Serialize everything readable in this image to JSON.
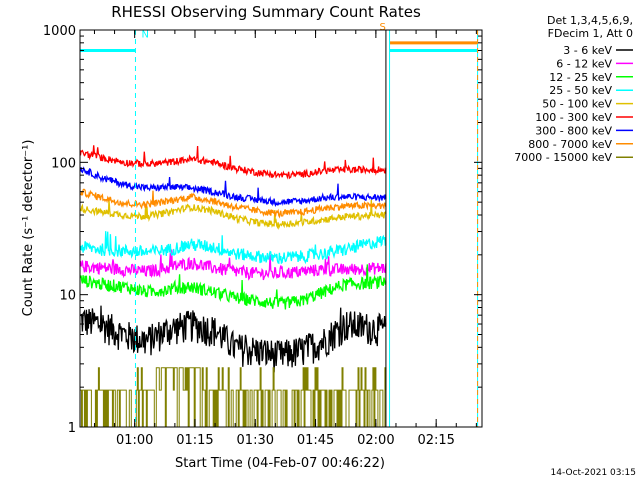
{
  "chart_data": {
    "type": "line",
    "title": "RHESSI Observing Summary Count Rates",
    "xlabel": "Start Time (04-Feb-07 00:46:22)",
    "ylabel": "Count Rate (s⁻¹ detector⁻¹)",
    "y_scale": "log",
    "ylim": [
      1,
      1000
    ],
    "xlim_minutes": [
      46.4,
      146.4
    ],
    "x_ticks": [
      {
        "minute": 60,
        "label": "01:00"
      },
      {
        "minute": 75,
        "label": "01:15"
      },
      {
        "minute": 90,
        "label": "01:30"
      },
      {
        "minute": 105,
        "label": "01:45"
      },
      {
        "minute": 120,
        "label": "02:00"
      },
      {
        "minute": 135,
        "label": "02:15"
      }
    ],
    "y_ticks": [
      {
        "value": 1,
        "label": "1"
      },
      {
        "value": 10,
        "label": "10"
      },
      {
        "value": 100,
        "label": "100"
      },
      {
        "value": 1000,
        "label": "1000"
      }
    ],
    "legend_header": [
      "Det 1,3,4,5,6,9,",
      "FDecim 1, Att 0"
    ],
    "legend_position": "right",
    "series": [
      {
        "name": "3 - 6 keV",
        "color": "#000000",
        "values": [
          6.5,
          6.0,
          5.0,
          4.5,
          5.5,
          6.0,
          5.5,
          4.0,
          3.8,
          3.5,
          3.8,
          4.5,
          6.0,
          5.5
        ]
      },
      {
        "name": "6 - 12 keV",
        "color": "#ff00ff",
        "values": [
          16.5,
          16.0,
          15.5,
          15.0,
          16.0,
          17.5,
          16.0,
          15.0,
          14.5,
          14.5,
          15.0,
          15.5,
          15.5,
          16.0
        ]
      },
      {
        "name": "12 - 25 keV",
        "color": "#00ff00",
        "values": [
          13.0,
          12.0,
          11.5,
          10.5,
          11.0,
          11.5,
          10.5,
          9.5,
          9.0,
          8.5,
          9.0,
          10.5,
          12.0,
          12.5
        ]
      },
      {
        "name": "25 - 50 keV",
        "color": "#00ffff",
        "values": [
          23.0,
          22.0,
          21.5,
          21.0,
          22.0,
          24.0,
          23.0,
          20.5,
          19.5,
          19.0,
          19.5,
          20.5,
          22.0,
          26.0
        ]
      },
      {
        "name": "50 - 100 keV",
        "color": "#e0c000",
        "values": [
          45.0,
          42.0,
          40.0,
          39.0,
          42.0,
          46.0,
          43.0,
          38.0,
          35.0,
          34.0,
          35.0,
          37.0,
          39.0,
          40.0
        ]
      },
      {
        "name": "100 - 300 keV",
        "color": "#ff0000",
        "values": [
          118.0,
          108.0,
          100.0,
          97.0,
          100.0,
          106.0,
          100.0,
          90.0,
          84.0,
          80.0,
          81.0,
          86.0,
          88.0,
          88.0
        ]
      },
      {
        "name": "300 - 800 keV",
        "color": "#0000ff",
        "values": [
          90.0,
          76.0,
          68.0,
          64.0,
          65.0,
          64.0,
          60.0,
          55.0,
          52.0,
          50.0,
          51.0,
          54.0,
          55.0,
          54.0
        ]
      },
      {
        "name": "800 - 7000 keV",
        "color": "#ff8c00",
        "values": [
          60.0,
          54.0,
          49.0,
          48.0,
          51.0,
          55.0,
          51.0,
          46.0,
          43.0,
          41.0,
          42.0,
          45.0,
          47.0,
          47.0
        ]
      },
      {
        "name": "7000 - 15000 keV",
        "color": "#808000",
        "values": [
          1.9,
          1.9,
          1.9,
          1.9,
          2.8,
          2.9,
          1.9,
          1.9,
          1.9,
          1.9,
          1.9,
          2.0,
          1.9,
          1.9
        ]
      }
    ],
    "series_x_minutes": [
      46.5,
      52.0,
      57.5,
      63.0,
      68.5,
      74.0,
      79.5,
      85.0,
      90.5,
      96.0,
      101.5,
      107.0,
      112.5,
      122.5
    ],
    "flags": [
      {
        "label": "N",
        "color": "#00ffff",
        "segments": [
          {
            "start": 46.4,
            "end": 60.2,
            "value": 700
          }
        ]
      },
      {
        "label": "S",
        "color": "#ff8c00",
        "segments": [
          {
            "start": 123.4,
            "end": 145.3,
            "value": 800
          }
        ]
      },
      {
        "label": "",
        "color": "#00ffff",
        "segments": [
          {
            "start": 123.4,
            "end": 145.3,
            "value": 700
          }
        ]
      }
    ],
    "vertical_markers": [
      {
        "minute": 46.4,
        "color": "#00ffff",
        "style": "solid"
      },
      {
        "minute": 60.2,
        "color": "#00ffff",
        "style": "dashed"
      },
      {
        "minute": 122.5,
        "color": "#000000",
        "style": "solid"
      },
      {
        "minute": 123.4,
        "color": "#00ffff",
        "style": "solid"
      },
      {
        "minute": 145.3,
        "color": "#00ffff",
        "style": "solid"
      },
      {
        "minute": 145.3,
        "color": "#ff8c00",
        "style": "dashed"
      }
    ]
  },
  "footer": {
    "timestamp": "14-Oct-2021 03:15"
  }
}
